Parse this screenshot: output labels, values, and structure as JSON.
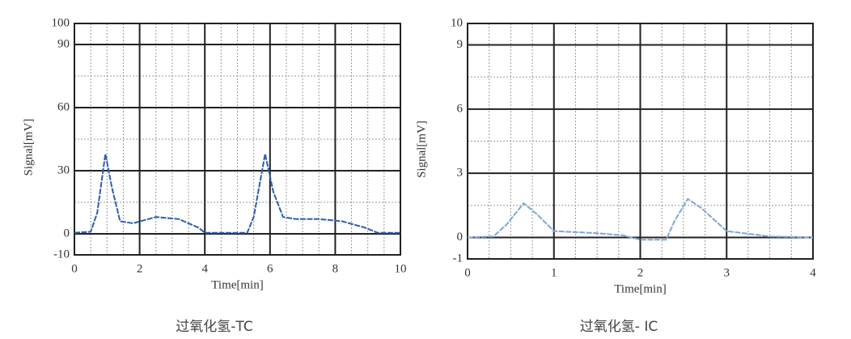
{
  "chart_data": [
    {
      "type": "line",
      "title": "过氧化氢-TC",
      "x_label": "Time[min]",
      "y_label": "Signal[mV]",
      "xlim": [
        0,
        10
      ],
      "xticks": [
        0,
        2,
        4,
        6,
        8,
        10
      ],
      "ylim": [
        -10,
        100
      ],
      "yticks": [
        -10,
        0,
        30,
        60,
        90,
        100
      ],
      "grid": true,
      "series": [
        {
          "name": "TC",
          "color": "#2d5fa8",
          "x": [
            0,
            0.5,
            0.7,
            0.95,
            1.15,
            1.4,
            1.8,
            2.5,
            3.2,
            3.8,
            4.0,
            5.3,
            5.5,
            5.85,
            6.1,
            6.4,
            6.8,
            7.5,
            8.2,
            8.9,
            9.3,
            10
          ],
          "values": [
            0.5,
            1,
            10,
            38,
            22,
            6,
            5,
            8,
            7,
            3,
            0.5,
            0.5,
            8,
            38,
            20,
            8,
            7,
            7,
            6,
            3,
            0.5,
            0.5
          ]
        }
      ]
    },
    {
      "type": "line",
      "title": "过氧化氢- IC",
      "x_label": "Time[min]",
      "y_label": "Signal[mV]",
      "xlim": [
        0,
        4
      ],
      "xticks": [
        0,
        1,
        2,
        3,
        4
      ],
      "ylim": [
        -1,
        10
      ],
      "yticks": [
        -1,
        0,
        3,
        6,
        9,
        10
      ],
      "grid": true,
      "series": [
        {
          "name": "IC",
          "color": "#7fa6d6",
          "x": [
            0,
            0.3,
            0.45,
            0.65,
            0.8,
            1.0,
            1.5,
            1.8,
            2.0,
            2.3,
            2.4,
            2.55,
            2.7,
            3.0,
            3.5,
            4.0
          ],
          "values": [
            0,
            0.05,
            0.6,
            1.6,
            1.1,
            0.3,
            0.2,
            0.1,
            -0.1,
            -0.1,
            0.8,
            1.8,
            1.4,
            0.3,
            0.05,
            0
          ]
        }
      ]
    }
  ]
}
